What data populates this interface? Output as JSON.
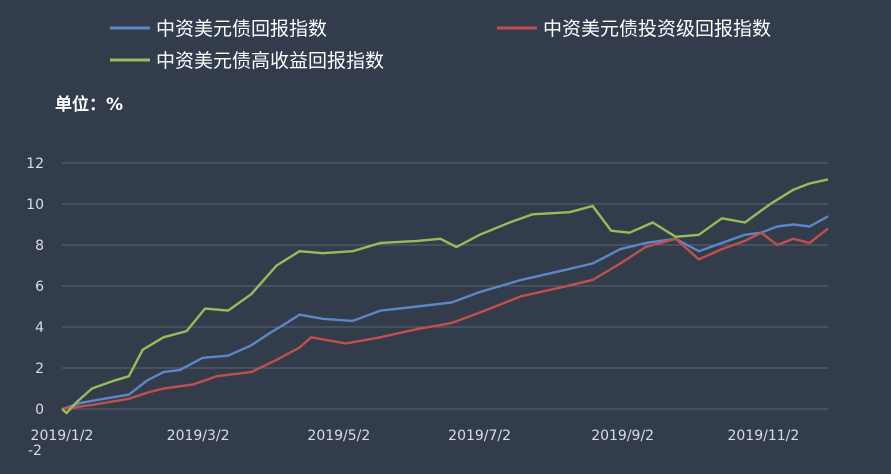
{
  "unit_label": "单位：%",
  "colors": {
    "background": "#323c4b",
    "grid": "#5b6472",
    "axis_text": "#d9dde4"
  },
  "chart_data": {
    "type": "line",
    "ylabel": "单位：%",
    "ylim": [
      -2,
      12
    ],
    "yticks": [
      0,
      2,
      4,
      6,
      8,
      10,
      12
    ],
    "yticks_extra_label": "-2",
    "x_start": "2019/1/2",
    "x_end": "2019/11/30",
    "xtick_labels": [
      "2019/1/2",
      "2019/3/2",
      "2019/5/2",
      "2019/7/2",
      "2019/9/2",
      "2019/11/2"
    ],
    "xtick_dates": [
      "2019-01-02",
      "2019-03-02",
      "2019-05-02",
      "2019-07-02",
      "2019-09-02",
      "2019-11-02"
    ],
    "grid": "horizontal",
    "legend_position": "top",
    "series": [
      {
        "name": "中资美元债回报指数",
        "color": "#5b87c9",
        "points": [
          [
            "2019-01-02",
            0
          ],
          [
            "2019-01-05",
            0.1
          ],
          [
            "2019-01-10",
            0.3
          ],
          [
            "2019-01-20",
            0.5
          ],
          [
            "2019-01-31",
            0.7
          ],
          [
            "2019-02-08",
            1.4
          ],
          [
            "2019-02-15",
            1.8
          ],
          [
            "2019-02-22",
            1.9
          ],
          [
            "2019-03-04",
            2.5
          ],
          [
            "2019-03-15",
            2.6
          ],
          [
            "2019-03-25",
            3.1
          ],
          [
            "2019-04-02",
            3.7
          ],
          [
            "2019-04-08",
            4.1
          ],
          [
            "2019-04-15",
            4.6
          ],
          [
            "2019-04-25",
            4.4
          ],
          [
            "2019-05-08",
            4.3
          ],
          [
            "2019-05-20",
            4.8
          ],
          [
            "2019-06-05",
            5.0
          ],
          [
            "2019-06-20",
            5.2
          ],
          [
            "2019-07-02",
            5.7
          ],
          [
            "2019-07-20",
            6.3
          ],
          [
            "2019-08-05",
            6.7
          ],
          [
            "2019-08-20",
            7.1
          ],
          [
            "2019-09-01",
            7.8
          ],
          [
            "2019-09-12",
            8.1
          ],
          [
            "2019-09-25",
            8.3
          ],
          [
            "2019-10-05",
            7.7
          ],
          [
            "2019-10-15",
            8.1
          ],
          [
            "2019-10-25",
            8.5
          ],
          [
            "2019-11-01",
            8.6
          ],
          [
            "2019-11-08",
            8.9
          ],
          [
            "2019-11-15",
            9.0
          ],
          [
            "2019-11-22",
            8.9
          ],
          [
            "2019-11-30",
            9.4
          ]
        ]
      },
      {
        "name": "中资美元债投资级回报指数",
        "color": "#c0504d",
        "points": [
          [
            "2019-01-02",
            0
          ],
          [
            "2019-01-05",
            0.05
          ],
          [
            "2019-01-15",
            0.2
          ],
          [
            "2019-01-31",
            0.5
          ],
          [
            "2019-02-08",
            0.8
          ],
          [
            "2019-02-15",
            1.0
          ],
          [
            "2019-02-28",
            1.2
          ],
          [
            "2019-03-10",
            1.6
          ],
          [
            "2019-03-25",
            1.8
          ],
          [
            "2019-04-05",
            2.4
          ],
          [
            "2019-04-15",
            3.0
          ],
          [
            "2019-04-20",
            3.5
          ],
          [
            "2019-05-05",
            3.2
          ],
          [
            "2019-05-20",
            3.5
          ],
          [
            "2019-06-05",
            3.9
          ],
          [
            "2019-06-20",
            4.2
          ],
          [
            "2019-07-02",
            4.7
          ],
          [
            "2019-07-20",
            5.5
          ],
          [
            "2019-08-05",
            5.9
          ],
          [
            "2019-08-20",
            6.3
          ],
          [
            "2019-09-01",
            7.1
          ],
          [
            "2019-09-12",
            7.9
          ],
          [
            "2019-09-25",
            8.3
          ],
          [
            "2019-10-05",
            7.3
          ],
          [
            "2019-10-15",
            7.8
          ],
          [
            "2019-10-25",
            8.2
          ],
          [
            "2019-11-01",
            8.6
          ],
          [
            "2019-11-08",
            8.0
          ],
          [
            "2019-11-15",
            8.3
          ],
          [
            "2019-11-22",
            8.1
          ],
          [
            "2019-11-30",
            8.8
          ]
        ]
      },
      {
        "name": "中资美元债高收益回报指数",
        "color": "#9bbb59",
        "points": [
          [
            "2019-01-02",
            0
          ],
          [
            "2019-01-04",
            -0.2
          ],
          [
            "2019-01-08",
            0.3
          ],
          [
            "2019-01-15",
            1.0
          ],
          [
            "2019-01-25",
            1.4
          ],
          [
            "2019-01-31",
            1.6
          ],
          [
            "2019-02-06",
            2.9
          ],
          [
            "2019-02-15",
            3.5
          ],
          [
            "2019-02-25",
            3.8
          ],
          [
            "2019-03-05",
            4.9
          ],
          [
            "2019-03-15",
            4.8
          ],
          [
            "2019-03-25",
            5.6
          ],
          [
            "2019-04-05",
            7.0
          ],
          [
            "2019-04-15",
            7.7
          ],
          [
            "2019-04-25",
            7.6
          ],
          [
            "2019-05-08",
            7.7
          ],
          [
            "2019-05-20",
            8.1
          ],
          [
            "2019-06-05",
            8.2
          ],
          [
            "2019-06-15",
            8.3
          ],
          [
            "2019-06-22",
            7.9
          ],
          [
            "2019-07-02",
            8.5
          ],
          [
            "2019-07-15",
            9.1
          ],
          [
            "2019-07-25",
            9.5
          ],
          [
            "2019-08-10",
            9.6
          ],
          [
            "2019-08-20",
            9.9
          ],
          [
            "2019-08-28",
            8.7
          ],
          [
            "2019-09-05",
            8.6
          ],
          [
            "2019-09-15",
            9.1
          ],
          [
            "2019-09-25",
            8.4
          ],
          [
            "2019-10-05",
            8.5
          ],
          [
            "2019-10-15",
            9.3
          ],
          [
            "2019-10-25",
            9.1
          ],
          [
            "2019-11-05",
            10.0
          ],
          [
            "2019-11-15",
            10.7
          ],
          [
            "2019-11-22",
            11.0
          ],
          [
            "2019-11-30",
            11.2
          ]
        ]
      }
    ]
  }
}
